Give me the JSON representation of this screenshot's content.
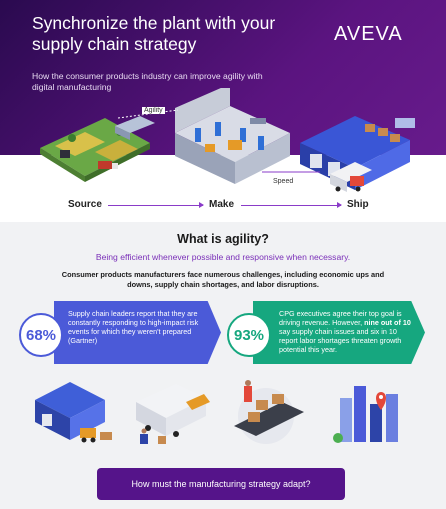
{
  "hero": {
    "title": "Synchronize the plant with your supply chain strategy",
    "subtitle": "How the consumer products industry can improve agility with digital manufacturing",
    "logo": "AVEVA"
  },
  "flow": {
    "source": "Source",
    "make": "Make",
    "ship": "Ship",
    "agility_label": "Agility",
    "speed_label": "Speed"
  },
  "agility": {
    "title": "What is agility?",
    "subtitle": "Being efficient whenever possible and responsive when necessary.",
    "description": "Consumer products manufacturers face numerous challenges, including economic ups and downs, supply chain shortages, and labor disruptions."
  },
  "stats": [
    {
      "value": "68%",
      "text": "Supply chain leaders report that they are constantly responding to high-impact risk events for which they weren't prepared (Gartner)"
    },
    {
      "value": "93%",
      "text_before": "CPG executives agree their top goal is driving revenue. However, ",
      "text_bold": "nine out of 10",
      "text_after": " say supply chain issues and six in 10 report labor shortages threaten growth potential this year."
    }
  ],
  "cta": {
    "label": "How must the manufacturing strategy adapt?"
  },
  "colors": {
    "brand_purple": "#55148a",
    "stat_blue": "#4b5ad8",
    "stat_green": "#16a77f",
    "accent_violet": "#7a2fb8"
  }
}
